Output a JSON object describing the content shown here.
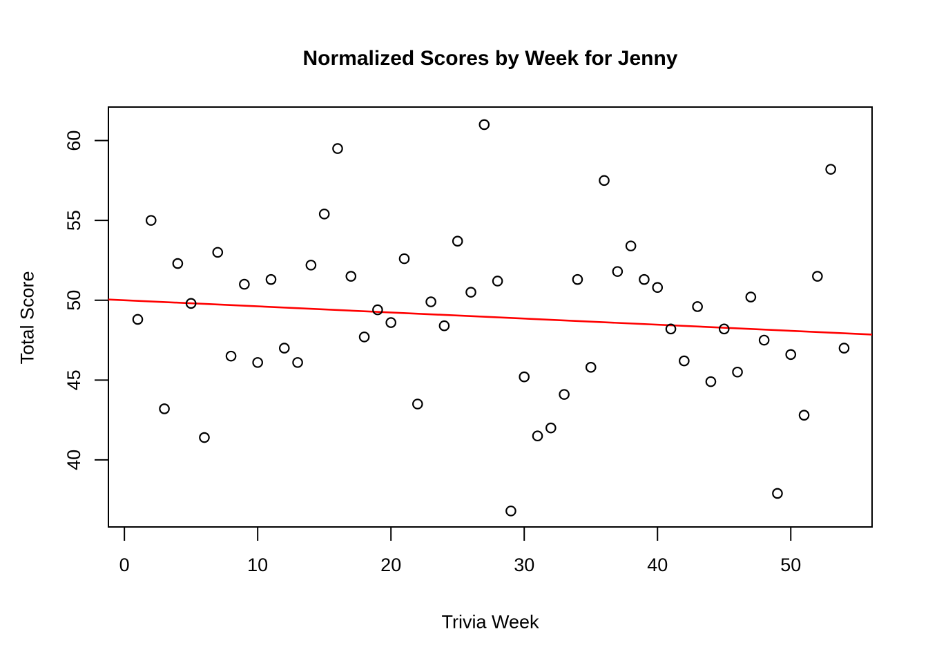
{
  "chart_data": {
    "type": "scatter",
    "title": "Normalized Scores by Week for Jenny",
    "xlabel": "Trivia Week",
    "ylabel": "Total Score",
    "x_ticks": [
      0,
      10,
      20,
      30,
      40,
      50
    ],
    "y_ticks": [
      40,
      45,
      50,
      55,
      60
    ],
    "xlim": [
      -1.2,
      56.1
    ],
    "ylim": [
      35.8,
      62.1
    ],
    "grid": false,
    "legend": "none",
    "point_style": "open-circle",
    "point_color": "#000000",
    "background_color": "#ffffff",
    "trend_line": {
      "type": "linear",
      "intercept": 50.0,
      "slope": -0.0383,
      "color": "#ff0000"
    },
    "x": [
      1,
      2,
      3,
      4,
      5,
      6,
      7,
      8,
      9,
      10,
      11,
      12,
      13,
      14,
      15,
      16,
      17,
      18,
      19,
      20,
      21,
      22,
      23,
      24,
      25,
      26,
      27,
      28,
      29,
      30,
      31,
      32,
      33,
      34,
      35,
      36,
      37,
      38,
      39,
      40,
      41,
      42,
      43,
      44,
      45,
      46,
      47,
      48,
      49,
      50,
      51,
      52,
      53,
      54
    ],
    "y": [
      48.8,
      55.0,
      43.2,
      52.3,
      49.8,
      41.4,
      53.0,
      46.5,
      51.0,
      46.1,
      51.3,
      47.0,
      46.1,
      52.2,
      55.4,
      59.5,
      51.5,
      47.7,
      49.4,
      48.6,
      52.6,
      43.5,
      49.9,
      48.4,
      53.7,
      50.5,
      61.0,
      51.2,
      36.8,
      45.2,
      41.5,
      42.0,
      44.1,
      51.3,
      45.8,
      57.5,
      51.8,
      53.4,
      51.3,
      50.8,
      48.2,
      46.2,
      49.6,
      44.9,
      48.2,
      45.5,
      50.2,
      47.5,
      37.9,
      46.6,
      42.8,
      51.5,
      58.2,
      47.0
    ]
  }
}
